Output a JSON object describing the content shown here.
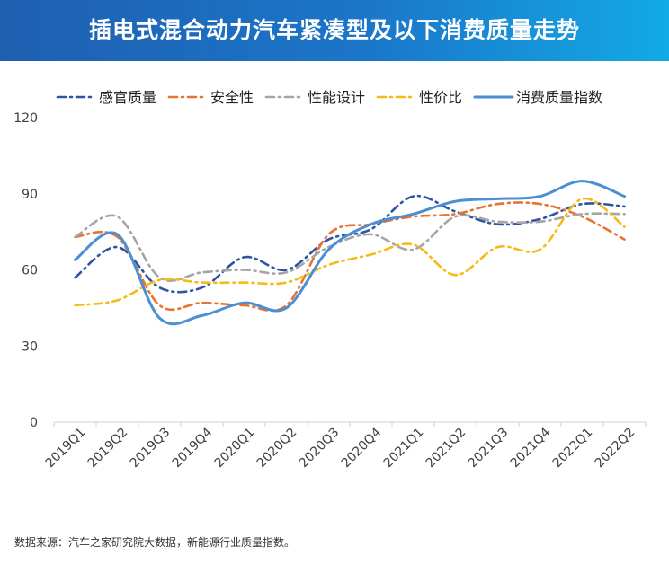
{
  "title": "插电式混合动力汽车紧凑型及以下消费质量走势",
  "source": "数据来源：汽车之家研究院大数据，新能源行业质量指数。",
  "chart_data": {
    "type": "line",
    "categories": [
      "2019Q1",
      "2019Q2",
      "2019Q3",
      "2019Q4",
      "2020Q1",
      "2020Q2",
      "2020Q3",
      "2020Q4",
      "2021Q1",
      "2021Q2",
      "2021Q3",
      "2021Q4",
      "2022Q1",
      "2022Q2"
    ],
    "ylim": [
      0,
      120
    ],
    "yticks": [
      0,
      30,
      60,
      90,
      120
    ],
    "grid": false,
    "legend_position": "top",
    "series": [
      {
        "name": "感官质量",
        "color": "#2e54a3",
        "dash": "dashdot",
        "values": [
          57,
          69,
          53,
          53,
          65,
          60,
          72,
          76,
          89,
          83,
          78,
          80,
          86,
          85
        ]
      },
      {
        "name": "安全性",
        "color": "#e8722f",
        "dash": "dashdot",
        "values": [
          73,
          73,
          46,
          47,
          46,
          46,
          74,
          78,
          81,
          82,
          86,
          86,
          81,
          72
        ]
      },
      {
        "name": "性能设计",
        "color": "#a5a5a5",
        "dash": "dashdot",
        "values": [
          73,
          81,
          57,
          59,
          60,
          59,
          69,
          74,
          68,
          81,
          79,
          79,
          82,
          82
        ]
      },
      {
        "name": "性价比",
        "color": "#f5bb16",
        "dash": "dashdot",
        "values": [
          46,
          48,
          56,
          55,
          55,
          55,
          62,
          66,
          70,
          58,
          69,
          68,
          88,
          77
        ]
      },
      {
        "name": "消费质量指数",
        "color": "#4a8fd4",
        "dash": "solid",
        "values": [
          64,
          74,
          41,
          42,
          47,
          45,
          68,
          78,
          82,
          87,
          88,
          89,
          95,
          89
        ]
      }
    ]
  }
}
